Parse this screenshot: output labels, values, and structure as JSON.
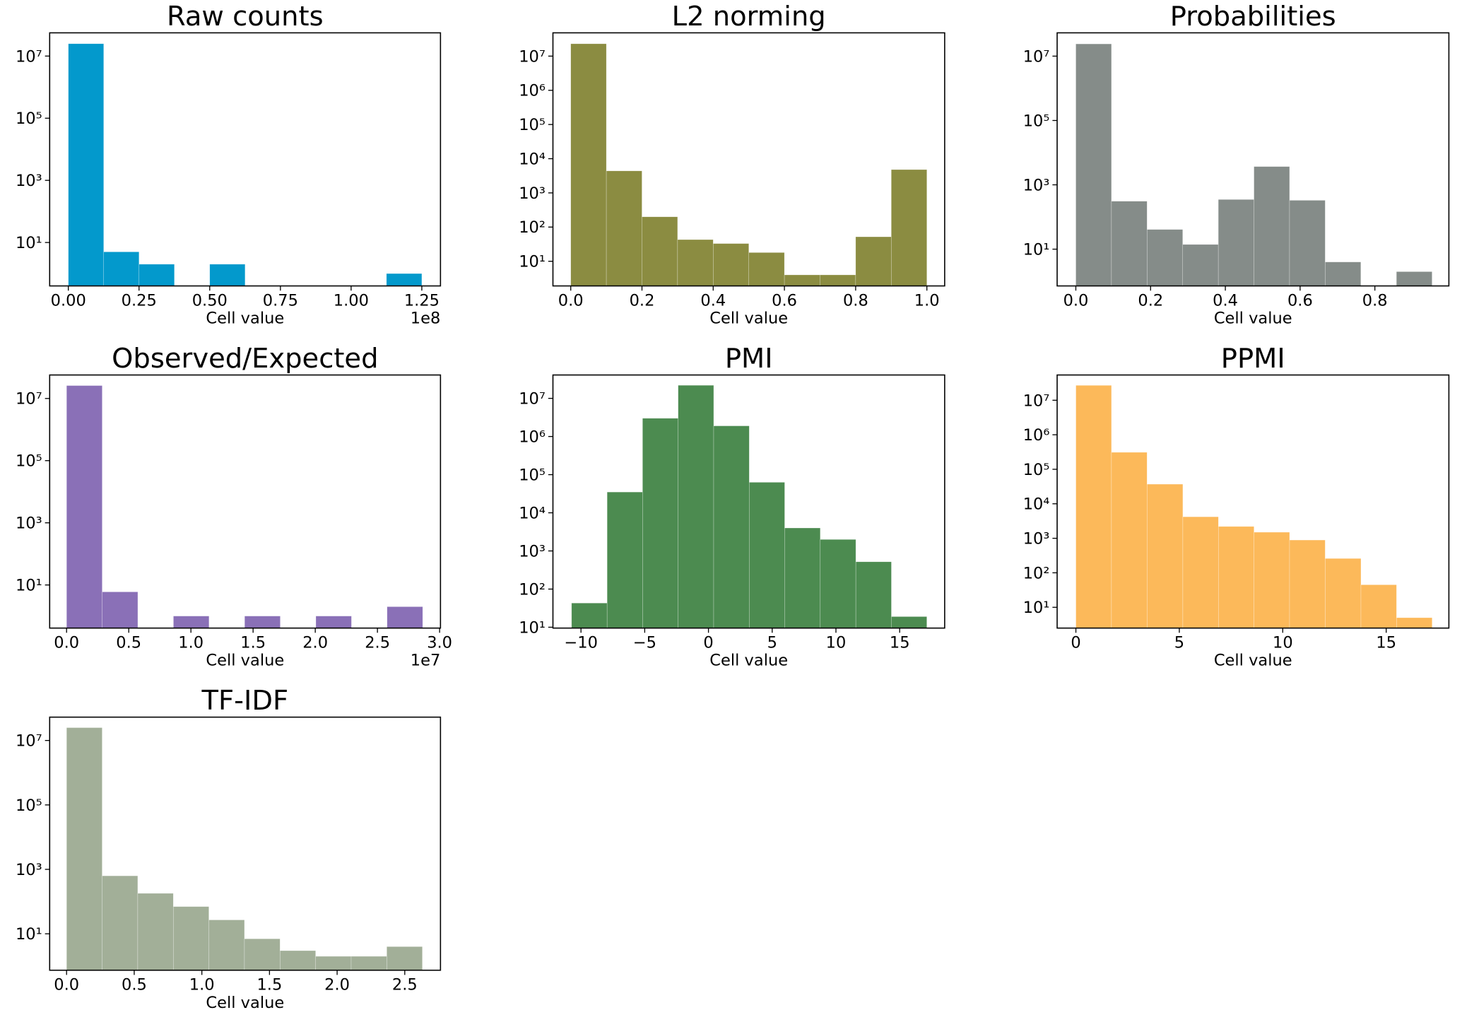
{
  "chart_data": [
    {
      "type": "histogram",
      "title": "Raw counts",
      "xlabel": "Cell value",
      "x_offset_label": "1e8",
      "color": "#0399cc",
      "log_y": true,
      "bins": [
        0,
        12500000,
        25000000,
        37500000,
        50000000,
        62500000,
        75000000,
        87500000,
        100000000,
        112500000,
        125000000
      ],
      "values": [
        25000000,
        5,
        2,
        0,
        2,
        0,
        0,
        0,
        0,
        1
      ],
      "xlim": [
        -6600000,
        131600000
      ],
      "xticks": [
        {
          "value": 0,
          "label": "0.00"
        },
        {
          "value": 25000000,
          "label": "0.25"
        },
        {
          "value": 50000000,
          "label": "0.50"
        },
        {
          "value": 75000000,
          "label": "0.75"
        },
        {
          "value": 100000000,
          "label": "1.00"
        },
        {
          "value": 125000000,
          "label": "1.25"
        }
      ],
      "ylim": [
        0.4,
        56000000
      ],
      "yticks": [
        {
          "value": 10,
          "label": "10¹"
        },
        {
          "value": 1000,
          "label": "10³"
        },
        {
          "value": 100000,
          "label": "10⁵"
        },
        {
          "value": 10000000,
          "label": "10⁷"
        }
      ]
    },
    {
      "type": "histogram",
      "title": "L2 norming",
      "xlabel": "Cell value",
      "color": "#8b8c41",
      "log_y": true,
      "bins": [
        0,
        0.1,
        0.2,
        0.3,
        0.4,
        0.5,
        0.6,
        0.7,
        0.8,
        0.9,
        1.0
      ],
      "values": [
        23000000,
        4400,
        200,
        43,
        33,
        18,
        4,
        4,
        52,
        4800
      ],
      "xlim": [
        -0.05,
        1.05
      ],
      "xticks": [
        {
          "value": 0,
          "label": "0.0"
        },
        0.2,
        0.4,
        0.6,
        0.8,
        {
          "value": 1,
          "label": "1.0"
        }
      ],
      "ylim": [
        1.9,
        48000000
      ],
      "yticks": [
        {
          "value": 10,
          "label": "10¹"
        },
        {
          "value": 100,
          "label": "10²"
        },
        {
          "value": 1000,
          "label": "10³"
        },
        {
          "value": 10000,
          "label": "10⁴"
        },
        {
          "value": 100000,
          "label": "10⁵"
        },
        {
          "value": 1000000,
          "label": "10⁶"
        },
        {
          "value": 10000000,
          "label": "10⁷"
        }
      ]
    },
    {
      "type": "histogram",
      "title": "Probabilities",
      "xlabel": "Cell value",
      "color": "#858c89",
      "log_y": true,
      "bins": [
        0,
        0.0953,
        0.1906,
        0.2859,
        0.3812,
        0.4765,
        0.5718,
        0.6671,
        0.7624,
        0.8577,
        0.953
      ],
      "values": [
        24000000,
        310,
        41,
        14,
        350,
        3700,
        330,
        4,
        0,
        2
      ],
      "xlim": [
        -0.05,
        0.998
      ],
      "xticks": [
        {
          "value": 0,
          "label": "0.0"
        },
        0.2,
        0.4,
        0.6,
        0.8
      ],
      "ylim": [
        0.72,
        53000000
      ],
      "yticks": [
        {
          "value": 10,
          "label": "10¹"
        },
        {
          "value": 1000,
          "label": "10³"
        },
        {
          "value": 100000,
          "label": "10⁵"
        },
        {
          "value": 10000000,
          "label": "10⁷"
        }
      ]
    },
    {
      "type": "histogram",
      "title": "Observed/Expected",
      "xlabel": "Cell value",
      "x_offset_label": "1e7",
      "color": "#8a70b7",
      "log_y": true,
      "bins": [
        0,
        2864000,
        5728000,
        8592000,
        11456000,
        14320000,
        17184000,
        20048000,
        22912000,
        25776000,
        28640000
      ],
      "values": [
        26000000,
        6,
        0,
        1,
        0,
        1,
        0,
        1,
        0,
        2
      ],
      "xlim": [
        -1360000,
        30070000
      ],
      "xticks": [
        {
          "value": 0,
          "label": "0.0"
        },
        {
          "value": 5000000,
          "label": "0.5"
        },
        {
          "value": 10000000,
          "label": "1.0"
        },
        {
          "value": 15000000,
          "label": "1.5"
        },
        {
          "value": 20000000,
          "label": "2.0"
        },
        {
          "value": 25000000,
          "label": "2.5"
        },
        {
          "value": 30000000,
          "label": "3.0"
        }
      ],
      "ylim": [
        0.41,
        57000000
      ],
      "yticks": [
        {
          "value": 10,
          "label": "10¹"
        },
        {
          "value": 1000,
          "label": "10³"
        },
        {
          "value": 100000,
          "label": "10⁵"
        },
        {
          "value": 10000000,
          "label": "10⁷"
        }
      ]
    },
    {
      "type": "histogram",
      "title": "PMI",
      "xlabel": "Cell value",
      "color": "#4c8b50",
      "log_y": true,
      "bins": [
        -10.74,
        -7.95,
        -5.17,
        -2.38,
        0.41,
        3.2,
        5.98,
        8.77,
        11.56,
        14.35,
        17.13
      ],
      "values": [
        43,
        35000,
        3000000,
        22000000,
        1900000,
        63000,
        4000,
        2000,
        520,
        19
      ],
      "xlim": [
        -12.2,
        18.53
      ],
      "xticks": [
        {
          "value": -10,
          "label": "−10"
        },
        {
          "value": -5,
          "label": "−5"
        },
        0,
        5,
        10,
        15
      ],
      "ylim": [
        9.5,
        41000000
      ],
      "yticks": [
        {
          "value": 10,
          "label": "10¹"
        },
        {
          "value": 100,
          "label": "10²"
        },
        {
          "value": 1000,
          "label": "10³"
        },
        {
          "value": 10000,
          "label": "10⁴"
        },
        {
          "value": 100000,
          "label": "10⁵"
        },
        {
          "value": 1000000,
          "label": "10⁶"
        },
        {
          "value": 10000000,
          "label": "10⁷"
        }
      ]
    },
    {
      "type": "histogram",
      "title": "PPMI",
      "xlabel": "Cell value",
      "color": "#fcb95a",
      "log_y": true,
      "bins": [
        0,
        1.72,
        3.44,
        5.17,
        6.89,
        8.61,
        10.33,
        12.05,
        13.78,
        15.5,
        17.22
      ],
      "values": [
        27000000,
        310000,
        37000,
        4200,
        2200,
        1500,
        890,
        260,
        45,
        5
      ],
      "xlim": [
        -0.906,
        18.03
      ],
      "xticks": [
        0,
        5,
        10,
        15
      ],
      "ylim": [
        2.5,
        54000000
      ],
      "yticks": [
        {
          "value": 10,
          "label": "10¹"
        },
        {
          "value": 100,
          "label": "10²"
        },
        {
          "value": 1000,
          "label": "10³"
        },
        {
          "value": 10000,
          "label": "10⁴"
        },
        {
          "value": 100000,
          "label": "10⁵"
        },
        {
          "value": 1000000,
          "label": "10⁶"
        },
        {
          "value": 10000000,
          "label": "10⁷"
        }
      ]
    },
    {
      "type": "histogram",
      "title": "TF-IDF",
      "xlabel": "Cell value",
      "color": "#a2af98",
      "log_y": true,
      "bins": [
        0,
        0.263,
        0.526,
        0.789,
        1.052,
        1.315,
        1.578,
        1.841,
        2.104,
        2.367,
        2.63
      ],
      "values": [
        25000000,
        630,
        180,
        70,
        27,
        7,
        3,
        2,
        2,
        4
      ],
      "xlim": [
        -0.125,
        2.764
      ],
      "xticks": [
        {
          "value": 0,
          "label": "0.0"
        },
        0.5,
        {
          "value": 1,
          "label": "1.0"
        },
        1.5,
        {
          "value": 2,
          "label": "2.0"
        },
        2.5
      ],
      "ylim": [
        0.74,
        53000000
      ],
      "yticks": [
        {
          "value": 10,
          "label": "10¹"
        },
        {
          "value": 1000,
          "label": "10³"
        },
        {
          "value": 100000,
          "label": "10⁵"
        },
        {
          "value": 10000000,
          "label": "10⁷"
        }
      ]
    }
  ]
}
